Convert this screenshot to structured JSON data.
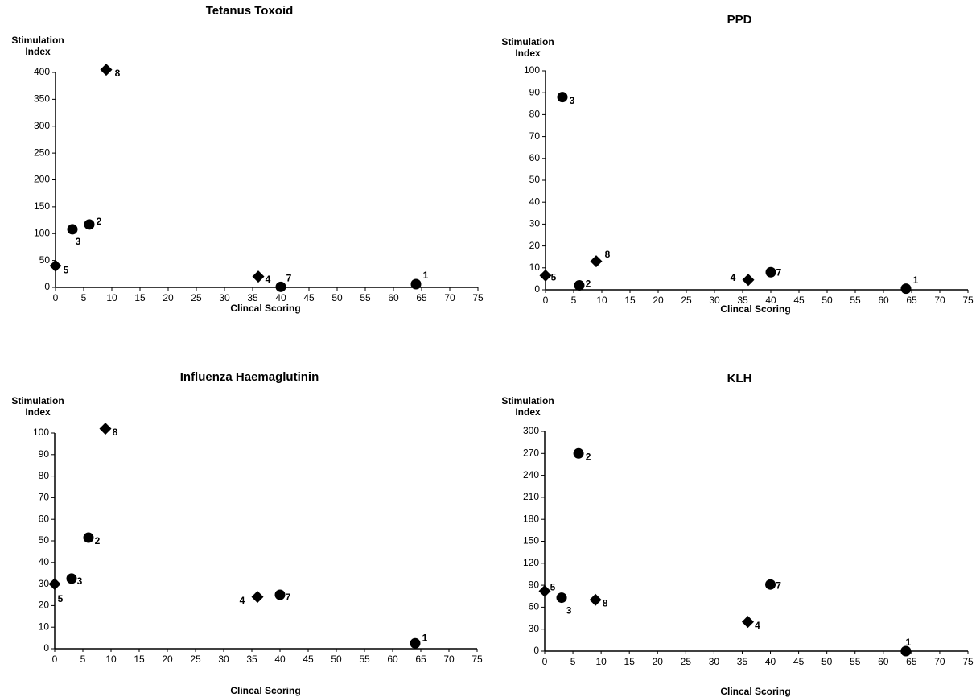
{
  "chart_data": [
    {
      "type": "scatter",
      "title": "Tetanus Toxoid",
      "ylabel": [
        "Stimulation",
        "Index"
      ],
      "xlabel": "Clincal Scoring",
      "xlim": [
        0,
        75
      ],
      "ylim": [
        0,
        400
      ],
      "x_ticks": [
        "0",
        "5",
        "10",
        "15",
        "20",
        "25",
        "30",
        "35",
        "40",
        "45",
        "50",
        "55",
        "60",
        "65",
        "70",
        "75"
      ],
      "y_ticks": [
        "0",
        "50",
        "100",
        "150",
        "200",
        "250",
        "300",
        "350",
        "400"
      ],
      "points": [
        {
          "label": "8",
          "x": 9,
          "y": 405,
          "marker": "diamond"
        },
        {
          "label": "2",
          "x": 6,
          "y": 117,
          "marker": "circle"
        },
        {
          "label": "3",
          "x": 3,
          "y": 108,
          "marker": "circle"
        },
        {
          "label": "5",
          "x": 0,
          "y": 40,
          "marker": "diamond"
        },
        {
          "label": "4",
          "x": 36,
          "y": 20,
          "marker": "diamond"
        },
        {
          "label": "7",
          "x": 40,
          "y": 1,
          "marker": "circle"
        },
        {
          "label": "1",
          "x": 64,
          "y": 6,
          "marker": "circle"
        }
      ],
      "grid": false
    },
    {
      "type": "scatter",
      "title": "PPD",
      "ylabel": [
        "Stimulation",
        "Index"
      ],
      "xlabel": "Clincal Scoring",
      "xlim": [
        0,
        75
      ],
      "ylim": [
        0,
        100
      ],
      "x_ticks": [
        "0",
        "5",
        "10",
        "15",
        "20",
        "25",
        "30",
        "35",
        "40",
        "45",
        "50",
        "55",
        "60",
        "65",
        "70",
        "75"
      ],
      "y_ticks": [
        "0",
        "10",
        "20",
        "30",
        "40",
        "50",
        "60",
        "70",
        "80",
        "90",
        "100"
      ],
      "points": [
        {
          "label": "3",
          "x": 3,
          "y": 88,
          "marker": "circle"
        },
        {
          "label": "8",
          "x": 9,
          "y": 13,
          "marker": "diamond"
        },
        {
          "label": "5",
          "x": 0,
          "y": 6.5,
          "marker": "diamond"
        },
        {
          "label": "2",
          "x": 6,
          "y": 2,
          "marker": "circle"
        },
        {
          "label": "4",
          "x": 36,
          "y": 4.5,
          "marker": "diamond"
        },
        {
          "label": "7",
          "x": 40,
          "y": 8,
          "marker": "circle"
        },
        {
          "label": "1",
          "x": 64,
          "y": 0.5,
          "marker": "circle"
        }
      ],
      "grid": false
    },
    {
      "type": "scatter",
      "title": "Influenza Haemaglutinin",
      "ylabel": [
        "Stimulation",
        "Index"
      ],
      "xlabel": "Clincal Scoring",
      "xlim": [
        0,
        75
      ],
      "ylim": [
        0,
        100
      ],
      "x_ticks": [
        "0",
        "5",
        "10",
        "15",
        "20",
        "25",
        "30",
        "35",
        "40",
        "45",
        "50",
        "55",
        "60",
        "65",
        "70",
        "75"
      ],
      "y_ticks": [
        "0",
        "10",
        "20",
        "30",
        "40",
        "50",
        "60",
        "70",
        "80",
        "90",
        "100"
      ],
      "points": [
        {
          "label": "8",
          "x": 9,
          "y": 102,
          "marker": "diamond"
        },
        {
          "label": "2",
          "x": 6,
          "y": 51.5,
          "marker": "circle"
        },
        {
          "label": "3",
          "x": 3,
          "y": 32.5,
          "marker": "circle"
        },
        {
          "label": "5",
          "x": 0,
          "y": 30,
          "marker": "diamond"
        },
        {
          "label": "4",
          "x": 36,
          "y": 24,
          "marker": "diamond"
        },
        {
          "label": "7",
          "x": 40,
          "y": 25,
          "marker": "circle"
        },
        {
          "label": "1",
          "x": 64,
          "y": 2.5,
          "marker": "circle"
        }
      ],
      "grid": false
    },
    {
      "type": "scatter",
      "title": "KLH",
      "ylabel": [
        "Stimulation",
        "Index"
      ],
      "xlabel": "Clincal Scoring",
      "xlim": [
        0,
        75
      ],
      "ylim": [
        0,
        300
      ],
      "x_ticks": [
        "0",
        "5",
        "10",
        "15",
        "20",
        "25",
        "30",
        "35",
        "40",
        "45",
        "50",
        "55",
        "60",
        "65",
        "70",
        "75"
      ],
      "y_ticks": [
        "0",
        "30",
        "60",
        "90",
        "120",
        "150",
        "180",
        "210",
        "240",
        "270",
        "300"
      ],
      "points": [
        {
          "label": "2",
          "x": 6,
          "y": 270,
          "marker": "circle"
        },
        {
          "label": "5",
          "x": 0,
          "y": 82,
          "marker": "diamond"
        },
        {
          "label": "3",
          "x": 3,
          "y": 73,
          "marker": "circle"
        },
        {
          "label": "8",
          "x": 9,
          "y": 70,
          "marker": "diamond"
        },
        {
          "label": "4",
          "x": 36,
          "y": 40,
          "marker": "diamond"
        },
        {
          "label": "7",
          "x": 40,
          "y": 91,
          "marker": "circle"
        },
        {
          "label": "1",
          "x": 64,
          "y": 0,
          "marker": "circle"
        }
      ],
      "grid": false
    }
  ]
}
